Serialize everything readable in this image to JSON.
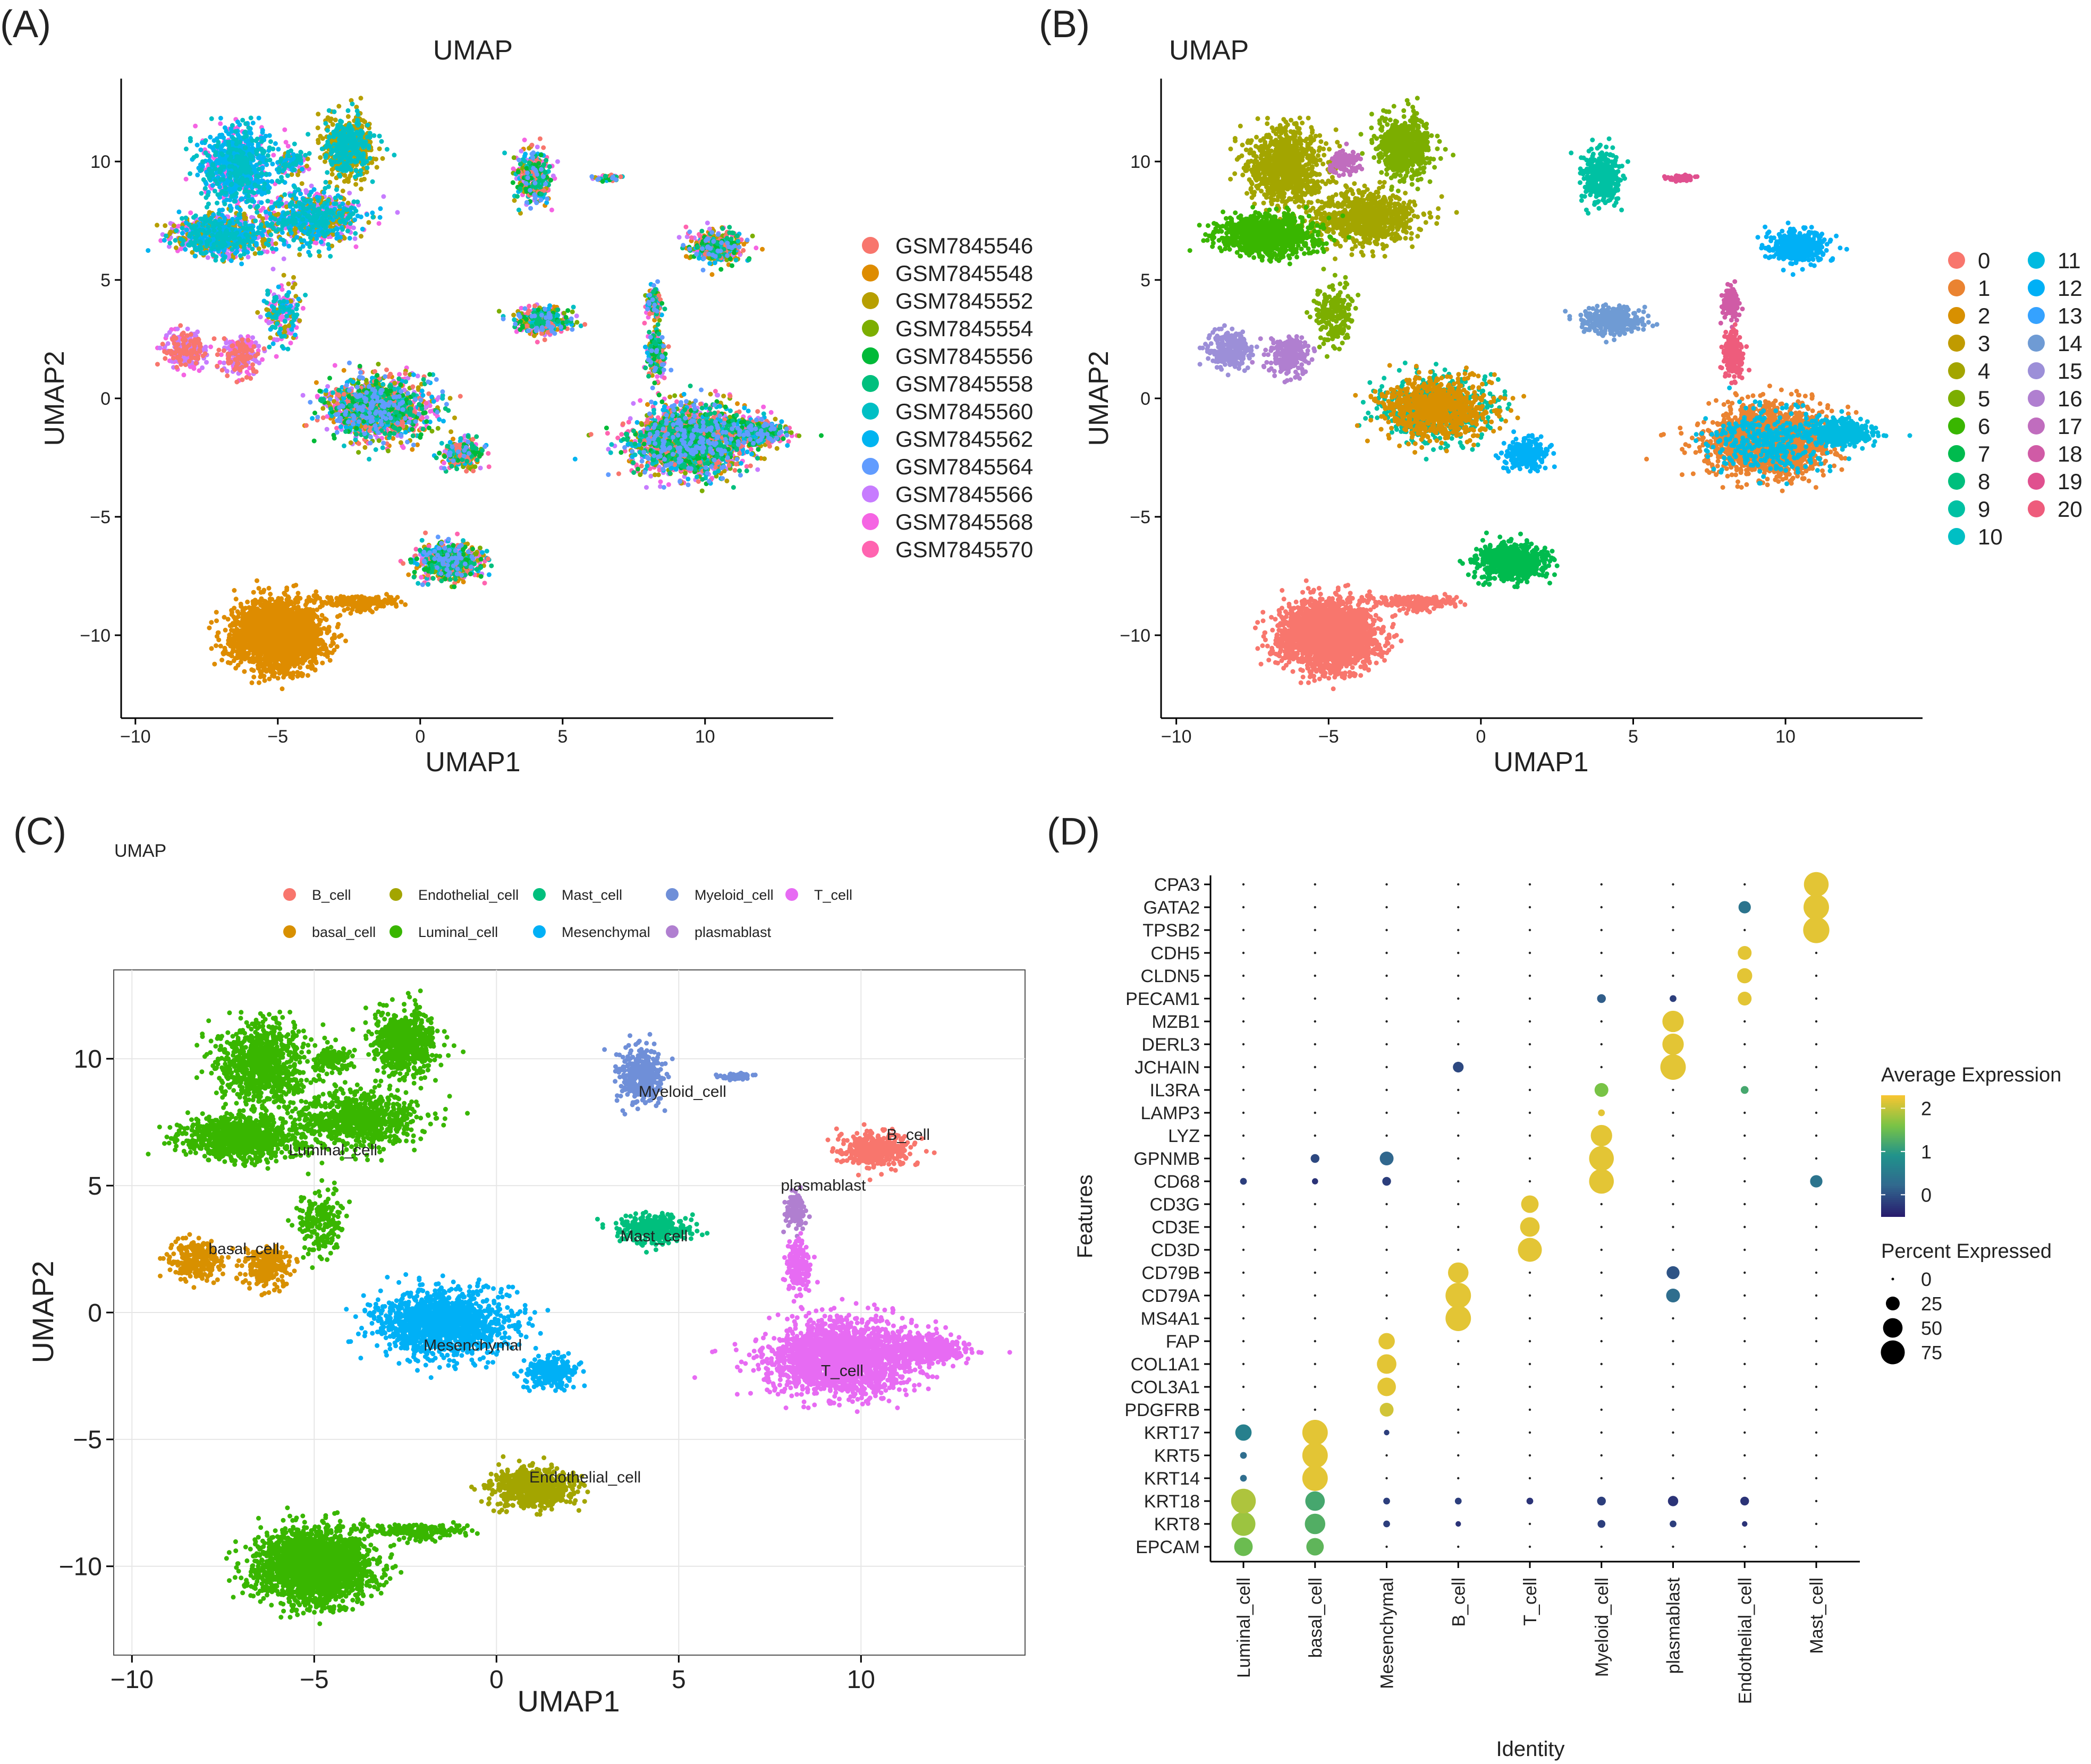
{
  "chart_data": [
    {
      "panel": "(A)",
      "type": "scatter",
      "title": "UMAP",
      "xlabel": "UMAP1",
      "ylabel": "UMAP2",
      "xlim": [
        -10.5,
        14.5
      ],
      "ylim": [
        -13.5,
        13.5
      ],
      "xticks": [
        -10,
        -5,
        0,
        5,
        10
      ],
      "yticks": [
        -10,
        -5,
        0,
        5,
        10
      ],
      "grid": false,
      "legend_position": "right",
      "legend": [
        {
          "label": "GSM7845546",
          "color": "#F8766D"
        },
        {
          "label": "GSM7845548",
          "color": "#DE8C00"
        },
        {
          "label": "GSM7845552",
          "color": "#B79F00"
        },
        {
          "label": "GSM7845554",
          "color": "#7CAE00"
        },
        {
          "label": "GSM7845556",
          "color": "#00BA38"
        },
        {
          "label": "GSM7845558",
          "color": "#00BF7D"
        },
        {
          "label": "GSM7845560",
          "color": "#00BFC4"
        },
        {
          "label": "GSM7845562",
          "color": "#00B4F0"
        },
        {
          "label": "GSM7845564",
          "color": "#619CFF"
        },
        {
          "label": "GSM7845566",
          "color": "#C77CFF"
        },
        {
          "label": "GSM7845568",
          "color": "#F564E3"
        },
        {
          "label": "GSM7845570",
          "color": "#FF64B0"
        }
      ]
    },
    {
      "panel": "(B)",
      "type": "scatter",
      "title": "UMAP",
      "xlabel": "UMAP1",
      "ylabel": "UMAP2",
      "xlim": [
        -10.5,
        14.5
      ],
      "ylim": [
        -13.5,
        13.5
      ],
      "xticks": [
        -10,
        -5,
        0,
        5,
        10
      ],
      "yticks": [
        -10,
        -5,
        0,
        5,
        10
      ],
      "grid": false,
      "legend_position": "right",
      "legend": [
        {
          "label": "0",
          "color": "#F8766D"
        },
        {
          "label": "1",
          "color": "#EA8331"
        },
        {
          "label": "2",
          "color": "#D89000"
        },
        {
          "label": "3",
          "color": "#C09B00"
        },
        {
          "label": "4",
          "color": "#A3A500"
        },
        {
          "label": "5",
          "color": "#7CAE00"
        },
        {
          "label": "6",
          "color": "#39B600"
        },
        {
          "label": "7",
          "color": "#00BB4E"
        },
        {
          "label": "8",
          "color": "#00BF7D"
        },
        {
          "label": "9",
          "color": "#00C1A3"
        },
        {
          "label": "10",
          "color": "#00BFC4"
        },
        {
          "label": "11",
          "color": "#00BAE0"
        },
        {
          "label": "12",
          "color": "#00B0F6"
        },
        {
          "label": "13",
          "color": "#35A2FF"
        },
        {
          "label": "14",
          "color": "#6F9BD4"
        },
        {
          "label": "15",
          "color": "#9C8FD8"
        },
        {
          "label": "16",
          "color": "#B07FD0"
        },
        {
          "label": "17",
          "color": "#C06DBE"
        },
        {
          "label": "18",
          "color": "#D05BA6"
        },
        {
          "label": "19",
          "color": "#E0508F"
        },
        {
          "label": "20",
          "color": "#EE5C7C"
        }
      ]
    },
    {
      "panel": "(C)",
      "type": "scatter",
      "title": "UMAP",
      "xlabel": "UMAP1",
      "ylabel": "UMAP2",
      "xlim": [
        -10.5,
        14.5
      ],
      "ylim": [
        -13.5,
        13.5
      ],
      "xticks": [
        -10,
        -5,
        0,
        5,
        10
      ],
      "yticks": [
        -10,
        -5,
        0,
        5,
        10
      ],
      "grid": true,
      "legend_position": "top",
      "legend": [
        {
          "label": "B_cell",
          "color": "#F8766D"
        },
        {
          "label": "Endothelial_cell",
          "color": "#A3A500"
        },
        {
          "label": "Mast_cell",
          "color": "#00BF7D"
        },
        {
          "label": "Myeloid_cell",
          "color": "#6F8FD8"
        },
        {
          "label": "T_cell",
          "color": "#E76BF3"
        },
        {
          "label": "basal_cell",
          "color": "#D89000"
        },
        {
          "label": "Luminal_cell",
          "color": "#39B600"
        },
        {
          "label": "Mesenchymal",
          "color": "#00B0F6"
        },
        {
          "label": "plasmablast",
          "color": "#B07FD0"
        }
      ],
      "annotations": [
        {
          "label": "Luminal_cell",
          "x": -5.7,
          "y": 6.2
        },
        {
          "label": "basal_cell",
          "x": -7.9,
          "y": 2.3
        },
        {
          "label": "Mesenchymal",
          "x": -2.0,
          "y": -1.5
        },
        {
          "label": "Myeloid_cell",
          "x": 3.9,
          "y": 8.5
        },
        {
          "label": "B_cell",
          "x": 10.7,
          "y": 6.8
        },
        {
          "label": "plasmablast",
          "x": 7.8,
          "y": 4.8
        },
        {
          "label": "Mast_cell",
          "x": 3.4,
          "y": 2.8
        },
        {
          "label": "T_cell",
          "x": 8.9,
          "y": -2.5
        },
        {
          "label": "Endothelial_cell",
          "x": 0.9,
          "y": -6.7
        }
      ]
    },
    {
      "panel": "(D)",
      "type": "scatter",
      "subtype": "dotplot",
      "xlabel": "Identity",
      "ylabel": "Features",
      "categories": [
        "Luminal_cell",
        "basal_cell",
        "Mesenchymal",
        "B_cell",
        "T_cell",
        "Myeloid_cell",
        "plasmablast",
        "Endothelial_cell",
        "Mast_cell"
      ],
      "features": [
        "EPCAM",
        "KRT8",
        "KRT18",
        "KRT14",
        "KRT5",
        "KRT17",
        "PDGFRB",
        "COL3A1",
        "COL1A1",
        "FAP",
        "MS4A1",
        "CD79A",
        "CD79B",
        "CD3D",
        "CD3E",
        "CD3G",
        "CD68",
        "GPNMB",
        "LYZ",
        "LAMP3",
        "IL3RA",
        "JCHAIN",
        "DERL3",
        "MZB1",
        "PECAM1",
        "CLDN5",
        "CDH5",
        "TPSB2",
        "GATA2",
        "CPA3"
      ],
      "dots": [
        {
          "feature": "EPCAM",
          "identity": "Luminal_cell",
          "pct": 45,
          "avg": 1.5
        },
        {
          "feature": "EPCAM",
          "identity": "basal_cell",
          "pct": 40,
          "avg": 1.4
        },
        {
          "feature": "KRT8",
          "identity": "Luminal_cell",
          "pct": 75,
          "avg": 1.8
        },
        {
          "feature": "KRT8",
          "identity": "basal_cell",
          "pct": 55,
          "avg": 1.3
        },
        {
          "feature": "KRT8",
          "identity": "Mesenchymal",
          "pct": 6,
          "avg": -0.2
        },
        {
          "feature": "KRT8",
          "identity": "B_cell",
          "pct": 4,
          "avg": -0.3
        },
        {
          "feature": "KRT8",
          "identity": "Myeloid_cell",
          "pct": 8,
          "avg": -0.2
        },
        {
          "feature": "KRT8",
          "identity": "plasmablast",
          "pct": 6,
          "avg": -0.2
        },
        {
          "feature": "KRT8",
          "identity": "Endothelial_cell",
          "pct": 4,
          "avg": -0.3
        },
        {
          "feature": "KRT18",
          "identity": "Luminal_cell",
          "pct": 80,
          "avg": 1.9
        },
        {
          "feature": "KRT18",
          "identity": "basal_cell",
          "pct": 50,
          "avg": 1.2
        },
        {
          "feature": "KRT18",
          "identity": "Mesenchymal",
          "pct": 6,
          "avg": -0.2
        },
        {
          "feature": "KRT18",
          "identity": "B_cell",
          "pct": 6,
          "avg": -0.2
        },
        {
          "feature": "KRT18",
          "identity": "T_cell",
          "pct": 6,
          "avg": -0.3
        },
        {
          "feature": "KRT18",
          "identity": "Myeloid_cell",
          "pct": 10,
          "avg": -0.2
        },
        {
          "feature": "KRT18",
          "identity": "plasmablast",
          "pct": 14,
          "avg": -0.3
        },
        {
          "feature": "KRT18",
          "identity": "Endothelial_cell",
          "pct": 10,
          "avg": -0.3
        },
        {
          "feature": "KRT14",
          "identity": "Luminal_cell",
          "pct": 6,
          "avg": 0.3
        },
        {
          "feature": "KRT14",
          "identity": "basal_cell",
          "pct": 85,
          "avg": 2.2
        },
        {
          "feature": "KRT5",
          "identity": "Luminal_cell",
          "pct": 6,
          "avg": 0.3
        },
        {
          "feature": "KRT5",
          "identity": "basal_cell",
          "pct": 85,
          "avg": 2.2
        },
        {
          "feature": "KRT17",
          "identity": "Luminal_cell",
          "pct": 35,
          "avg": 0.6
        },
        {
          "feature": "KRT17",
          "identity": "basal_cell",
          "pct": 85,
          "avg": 2.2
        },
        {
          "feature": "KRT17",
          "identity": "Mesenchymal",
          "pct": 4,
          "avg": -0.2
        },
        {
          "feature": "PDGFRB",
          "identity": "Mesenchymal",
          "pct": 25,
          "avg": 2.1
        },
        {
          "feature": "COL3A1",
          "identity": "Mesenchymal",
          "pct": 45,
          "avg": 2.2
        },
        {
          "feature": "COL1A1",
          "identity": "Mesenchymal",
          "pct": 50,
          "avg": 2.2
        },
        {
          "feature": "FAP",
          "identity": "Mesenchymal",
          "pct": 35,
          "avg": 2.2
        },
        {
          "feature": "MS4A1",
          "identity": "B_cell",
          "pct": 85,
          "avg": 2.2
        },
        {
          "feature": "CD79A",
          "identity": "B_cell",
          "pct": 85,
          "avg": 2.2
        },
        {
          "feature": "CD79A",
          "identity": "plasmablast",
          "pct": 25,
          "avg": 0.3
        },
        {
          "feature": "CD79B",
          "identity": "B_cell",
          "pct": 55,
          "avg": 2.2
        },
        {
          "feature": "CD79B",
          "identity": "plasmablast",
          "pct": 22,
          "avg": 0.0
        },
        {
          "feature": "CD3D",
          "identity": "T_cell",
          "pct": 75,
          "avg": 2.2
        },
        {
          "feature": "CD3E",
          "identity": "T_cell",
          "pct": 50,
          "avg": 2.2
        },
        {
          "feature": "CD3G",
          "identity": "T_cell",
          "pct": 40,
          "avg": 2.2
        },
        {
          "feature": "CD68",
          "identity": "Luminal_cell",
          "pct": 6,
          "avg": -0.2
        },
        {
          "feature": "CD68",
          "identity": "basal_cell",
          "pct": 5,
          "avg": -0.3
        },
        {
          "feature": "CD68",
          "identity": "Mesenchymal",
          "pct": 10,
          "avg": -0.2
        },
        {
          "feature": "CD68",
          "identity": "Myeloid_cell",
          "pct": 80,
          "avg": 2.2
        },
        {
          "feature": "CD68",
          "identity": "Mast_cell",
          "pct": 20,
          "avg": 0.4
        },
        {
          "feature": "GPNMB",
          "identity": "basal_cell",
          "pct": 10,
          "avg": -0.1
        },
        {
          "feature": "GPNMB",
          "identity": "Mesenchymal",
          "pct": 25,
          "avg": 0.2
        },
        {
          "feature": "GPNMB",
          "identity": "Myeloid_cell",
          "pct": 80,
          "avg": 2.2
        },
        {
          "feature": "LYZ",
          "identity": "Myeloid_cell",
          "pct": 60,
          "avg": 2.2
        },
        {
          "feature": "LAMP3",
          "identity": "Myeloid_cell",
          "pct": 6,
          "avg": 2.2
        },
        {
          "feature": "IL3RA",
          "identity": "Myeloid_cell",
          "pct": 25,
          "avg": 1.6
        },
        {
          "feature": "IL3RA",
          "identity": "Endothelial_cell",
          "pct": 8,
          "avg": 1.2
        },
        {
          "feature": "JCHAIN",
          "identity": "B_cell",
          "pct": 15,
          "avg": -0.1
        },
        {
          "feature": "JCHAIN",
          "identity": "plasmablast",
          "pct": 85,
          "avg": 2.2
        },
        {
          "feature": "DERL3",
          "identity": "plasmablast",
          "pct": 60,
          "avg": 2.2
        },
        {
          "feature": "MZB1",
          "identity": "plasmablast",
          "pct": 60,
          "avg": 2.2
        },
        {
          "feature": "PECAM1",
          "identity": "Myeloid_cell",
          "pct": 10,
          "avg": 0.1
        },
        {
          "feature": "PECAM1",
          "identity": "plasmablast",
          "pct": 6,
          "avg": -0.2
        },
        {
          "feature": "PECAM1",
          "identity": "Endothelial_cell",
          "pct": 25,
          "avg": 2.2
        },
        {
          "feature": "CLDN5",
          "identity": "Endothelial_cell",
          "pct": 30,
          "avg": 2.2
        },
        {
          "feature": "CDH5",
          "identity": "Endothelial_cell",
          "pct": 25,
          "avg": 2.2
        },
        {
          "feature": "TPSB2",
          "identity": "Mast_cell",
          "pct": 90,
          "avg": 2.2
        },
        {
          "feature": "GATA2",
          "identity": "Endothelial_cell",
          "pct": 20,
          "avg": 0.4
        },
        {
          "feature": "GATA2",
          "identity": "Mast_cell",
          "pct": 85,
          "avg": 2.2
        },
        {
          "feature": "CPA3",
          "identity": "Mast_cell",
          "pct": 80,
          "avg": 2.2
        }
      ],
      "color_legend": {
        "title": "Average Expression",
        "ticks": [
          2,
          1,
          0
        ],
        "range": [
          -0.5,
          2.3
        ]
      },
      "size_legend": {
        "title": "Percent Expressed",
        "values": [
          0,
          25,
          50,
          75
        ]
      }
    }
  ]
}
